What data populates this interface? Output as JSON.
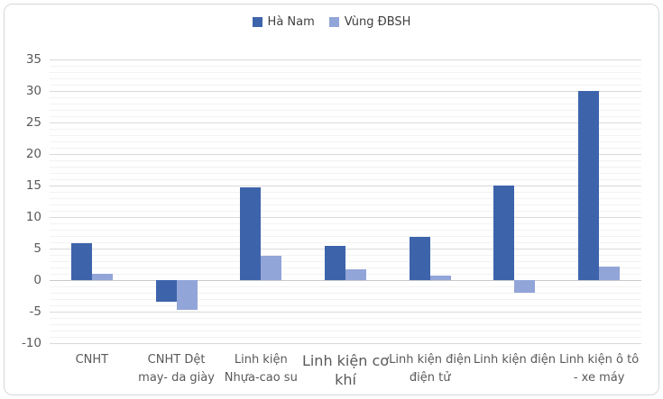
{
  "window": {
    "background": "#ffffff",
    "border_color": "#d7d7d7"
  },
  "legend": {
    "position": "top-center",
    "items": [
      {
        "label": "Hà Nam",
        "color": "#3d64ab"
      },
      {
        "label": "Vùng ĐBSH",
        "color": "#92a5d8"
      }
    ]
  },
  "chart_data": {
    "type": "bar",
    "title": "",
    "xlabel": "",
    "ylabel": "",
    "grid": true,
    "legend_position": "top",
    "ylim": [
      -10,
      35
    ],
    "yticks": [
      35,
      30,
      25,
      20,
      15,
      10,
      5,
      0,
      -5,
      -10
    ],
    "minor_unit": 1,
    "major_unit": 5,
    "categories": [
      {
        "label": "CNHT",
        "lines": [
          "CNHT"
        ],
        "emphasis": false
      },
      {
        "label": "CNHT Dệt may- da giày",
        "lines": [
          "CNHT Dệt",
          "may- da giày"
        ],
        "emphasis": false
      },
      {
        "label": "Linh kiện Nhựa-cao su",
        "lines": [
          "Linh kiện",
          "Nhựa-cao su"
        ],
        "emphasis": false
      },
      {
        "label": "Linh kiện cơ khí",
        "lines": [
          "Linh kiện cơ",
          "khí"
        ],
        "emphasis": true
      },
      {
        "label": "Linh kiện điện điện tử",
        "lines": [
          "Linh kiện điện",
          "điện tử"
        ],
        "emphasis": false
      },
      {
        "label": "Linh kiện điện",
        "lines": [
          "Linh kiện điện"
        ],
        "emphasis": false
      },
      {
        "label": "Linh kiện ô tô - xe máy",
        "lines": [
          "Linh kiện ô tô",
          "- xe máy"
        ],
        "emphasis": false
      }
    ],
    "series": [
      {
        "name": "Hà Nam",
        "color": "#3d64ab",
        "values": [
          5.8,
          -3.4,
          14.7,
          5.4,
          6.8,
          15.0,
          30.0
        ]
      },
      {
        "name": "Vùng ĐBSH",
        "color": "#92a5d8",
        "values": [
          1.0,
          -4.7,
          3.8,
          1.7,
          0.7,
          -2.1,
          2.1
        ]
      }
    ],
    "colors": {
      "major_gridline": "#d9d9d9",
      "minor_gridline": "#f2f2f2",
      "zero_axis_line": "#c7cacd",
      "axis_label_text": "#595959",
      "legend_text": "#3f3f3f"
    }
  }
}
